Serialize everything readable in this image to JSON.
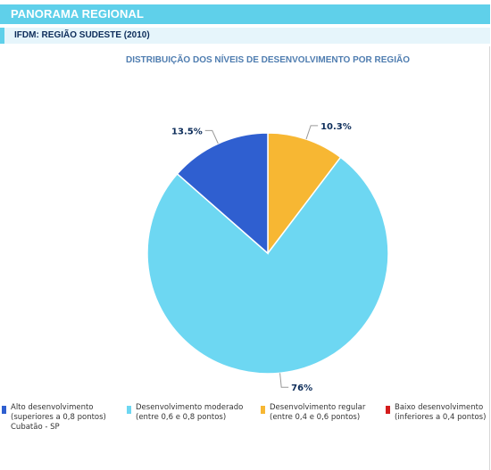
{
  "header": {
    "title": "PANORAMA REGIONAL"
  },
  "subheader": {
    "title": "IFDM: REGIÃO SUDESTE (2010)"
  },
  "colors": {
    "header_bar": "#5fd0ea",
    "chart_title": "#4f7db0",
    "label_text": "#0d2d5a",
    "alto": "#2f5fd0",
    "moderado": "#6dd7f2",
    "regular": "#f7b733",
    "baixo": "#d41c1c"
  },
  "chart_data": {
    "type": "pie",
    "title": "DISTRIBUIÇÃO DOS NÍVEIS DE DESENVOLVIMENTO POR REGIÃO",
    "slices": [
      {
        "label": "Regular",
        "value": 10.3,
        "display": "10.3%",
        "color": "#f7b733"
      },
      {
        "label": "Moderado",
        "value": 76,
        "display": "76%",
        "color": "#6dd7f2"
      },
      {
        "label": "Alto",
        "value": 13.5,
        "display": "13.5%",
        "color": "#2f5fd0"
      }
    ],
    "legend_position": "bottom"
  },
  "legend": [
    {
      "line1": "Alto desenvolvimento",
      "line2": "(superiores a 0,8 pontos)",
      "color": "#2f5fd0"
    },
    {
      "line1": "Desenvolvimento moderado",
      "line2": "(entre 0,6 e 0,8 pontos)",
      "color": "#6dd7f2"
    },
    {
      "line1": "Desenvolvimento regular",
      "line2": "(entre 0,4 e 0,6 pontos)",
      "color": "#f7b733"
    },
    {
      "line1": "Baixo desenvolvimento",
      "line2": "(inferiores a 0,4 pontos)",
      "color": "#d41c1c"
    }
  ],
  "footer": {
    "location": "Cubatão - SP"
  }
}
